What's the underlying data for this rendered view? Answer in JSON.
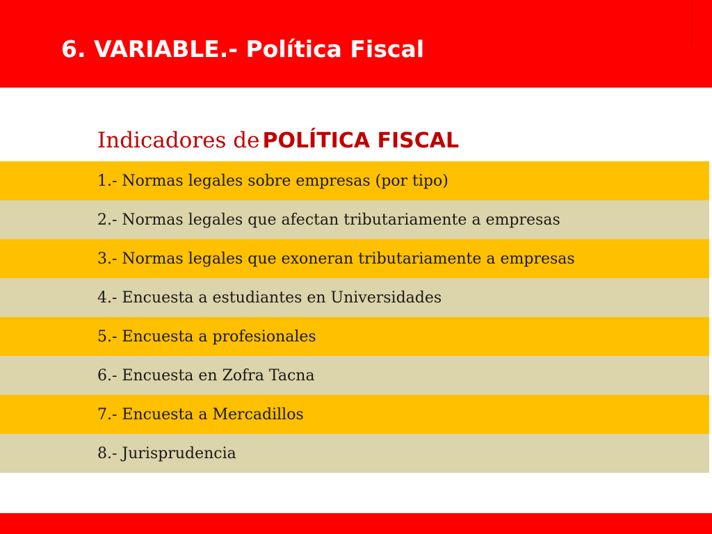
{
  "slide": {
    "title": "6. VARIABLE.- Política Fiscal",
    "subtitle_prefix": "Indicadores de",
    "subtitle_emphasis": "POLÍTICA FISCAL"
  },
  "indicators": [
    "1.- Normas legales sobre empresas (por tipo)",
    "2.- Normas legales que afectan tributariamente a empresas",
    "3.- Normas legales que exoneran tributariamente a empresas",
    "4.- Encuesta a estudiantes en Universidades",
    "5.- Encuesta a profesionales",
    "6.- Encuesta en Zofra Tacna",
    "7.- Encuesta a Mercadillos",
    "8.- Jurisprudencia"
  ],
  "colors": {
    "header_red": "#ff0000",
    "row_gold": "#ffc000",
    "row_beige": "#dcd4aa",
    "subtitle_red": "#c00000"
  }
}
